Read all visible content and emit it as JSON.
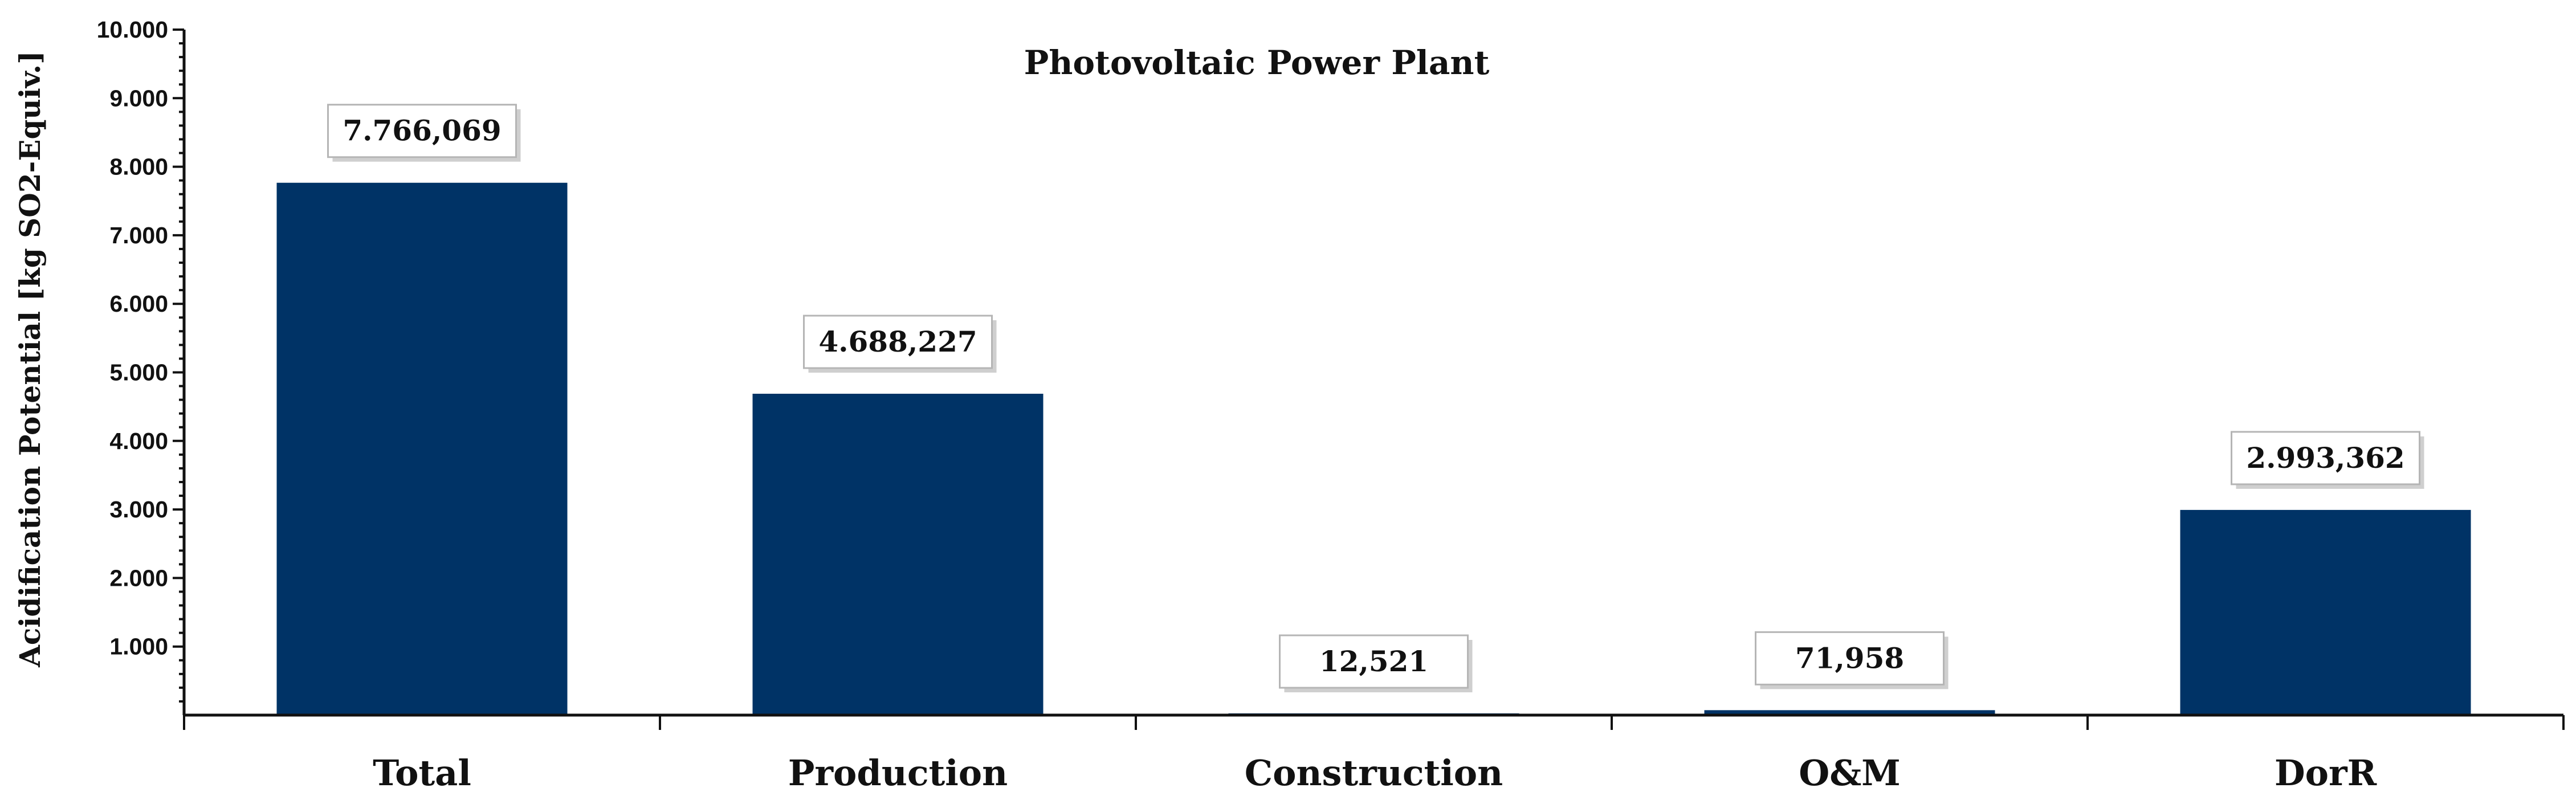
{
  "chart_data": {
    "type": "bar",
    "title": "Photovoltaic Power Plant",
    "xlabel": "",
    "ylabel": "Acidification Potential [kg SO2-Equiv.]",
    "categories": [
      "Total",
      "Production",
      "Construction",
      "O&M",
      "DorR"
    ],
    "values": [
      7766.069,
      4688.227,
      12.521,
      71.958,
      2993.362
    ],
    "data_labels": [
      "7.766,069",
      "4.688,227",
      "12,521",
      "71,958",
      "2.993,362"
    ],
    "y_ticks": [
      1000,
      2000,
      3000,
      4000,
      5000,
      6000,
      7000,
      8000,
      9000,
      10000
    ],
    "y_tick_labels": [
      "1.000",
      "2.000",
      "3.000",
      "4.000",
      "5.000",
      "6.000",
      "7.000",
      "8.000",
      "9.000",
      "10.000"
    ],
    "ylim": [
      0,
      10000
    ],
    "grid": false,
    "bar_color": "#003366"
  }
}
